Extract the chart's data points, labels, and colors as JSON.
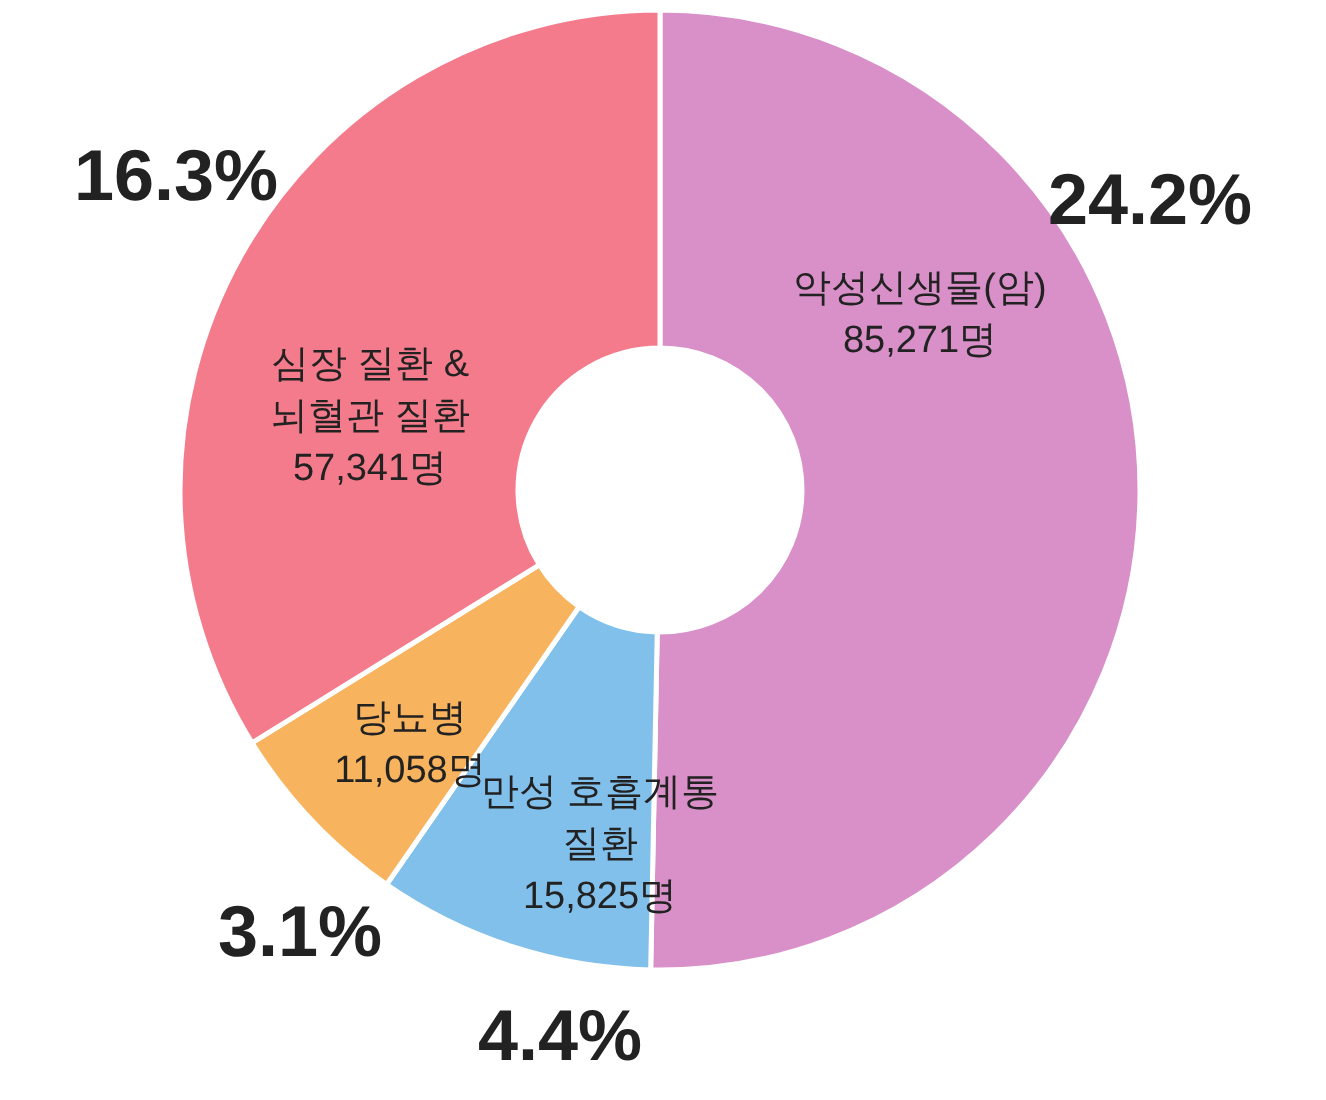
{
  "chart_data": {
    "type": "donut",
    "categories": [
      "악성신생물(암)",
      "만성 호흡계통 질환",
      "당뇨병",
      "심장 질환 & 뇌혈관 질환"
    ],
    "values": [
      85271,
      15825,
      11058,
      57341
    ],
    "value_labels": [
      "85,271명",
      "15,825명",
      "11,058명",
      "57,341명"
    ],
    "colors": [
      "#d98fc8",
      "#82c0ec",
      "#f8b35e",
      "#f47b8b"
    ],
    "annotations": [
      "24.2%",
      "4.4%",
      "3.1%",
      "16.3%"
    ]
  }
}
